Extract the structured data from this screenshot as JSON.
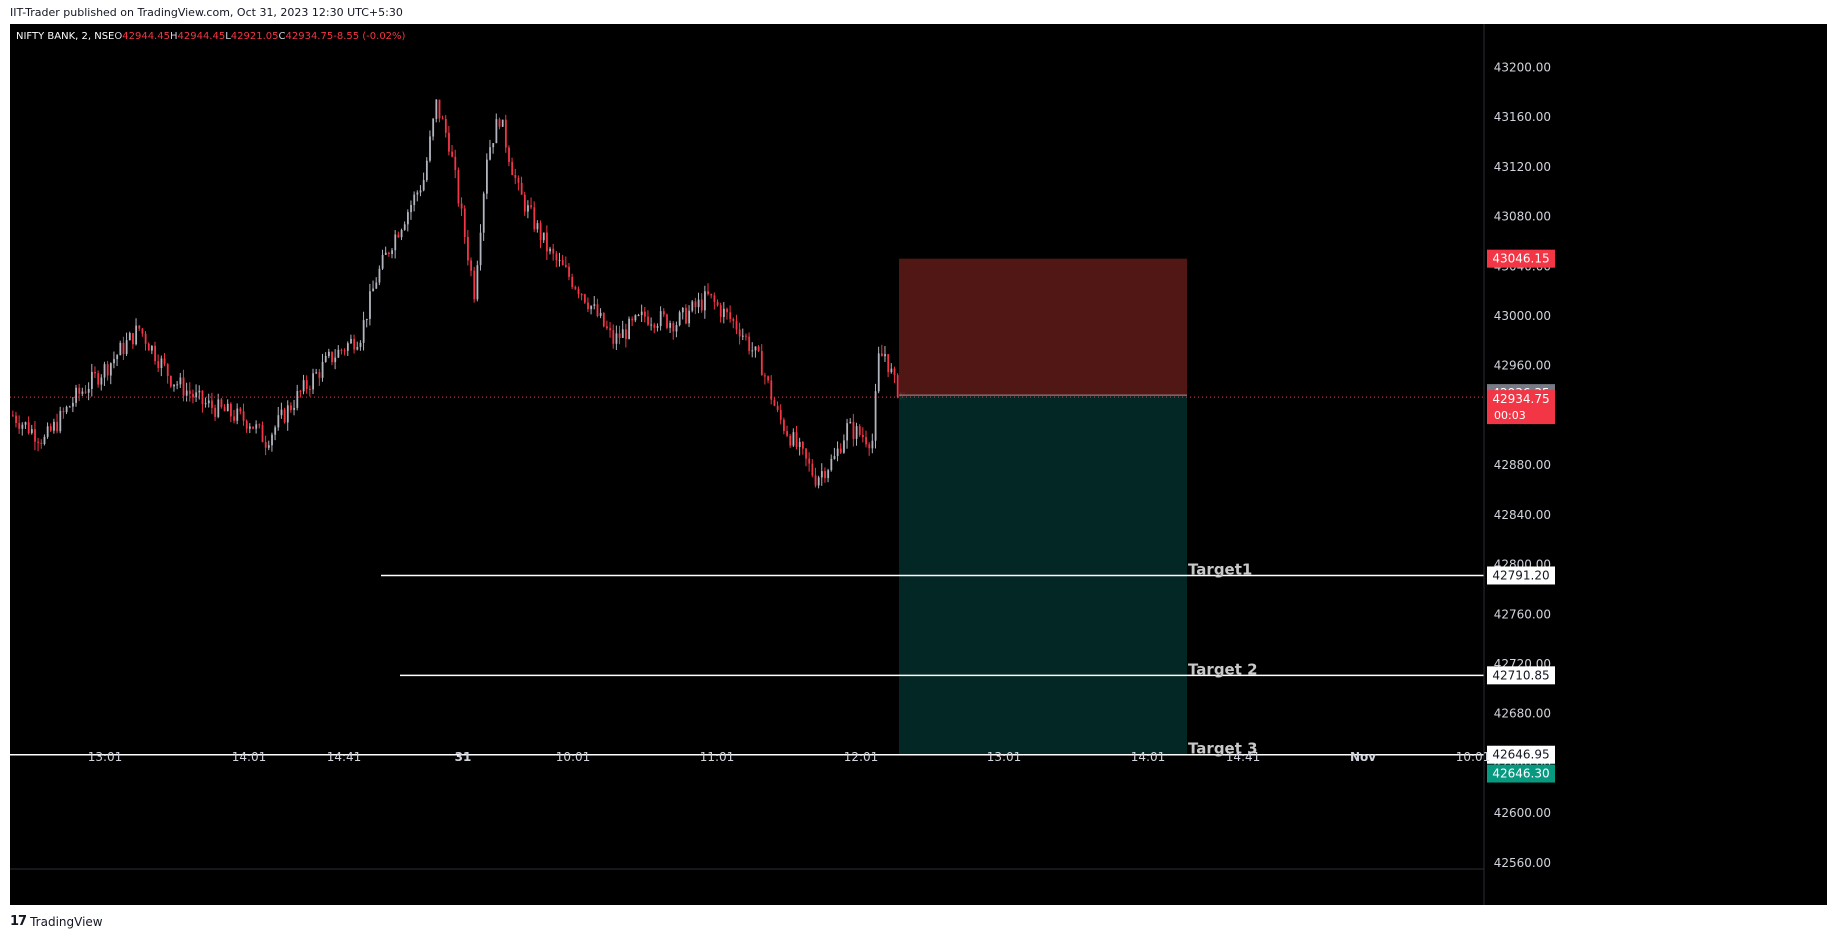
{
  "header": {
    "text": "IIT-Trader published on TradingView.com, Oct 31, 2023 12:30 UTC+5:30"
  },
  "footer": {
    "brand": "TradingView",
    "logo_icon": "tradingview-logo-icon"
  },
  "legend": {
    "symbol": "NIFTY BANK, 2, NSE",
    "o_label": "O",
    "o": "42944.45",
    "h_label": "H",
    "h": "42944.45",
    "l_label": "L",
    "l": "42921.05",
    "c_label": "C",
    "c": "42934.75",
    "change": "-8.55 (-0.02%)"
  },
  "colors": {
    "up": "#b2b5be",
    "down": "#f23645",
    "stop_zone": "#5a1a17",
    "target_zone": "#022b28",
    "badge_red": "#f23645",
    "badge_green": "#089981",
    "badge_gray": "#787b86"
  },
  "chart_data": {
    "type": "candlestick",
    "y_ticks": [
      43200,
      43160,
      43120,
      43080,
      43040,
      43000,
      42960,
      42920,
      42880,
      42840,
      42800,
      42760,
      42720,
      42680,
      42640,
      42600,
      42560
    ],
    "y_tick_labels": [
      "43200.00",
      "43160.00",
      "43120.00",
      "43080.00",
      "43040.00",
      "43000.00",
      "42960.00",
      "42920.00",
      "42880.00",
      "42840.00",
      "42800.00",
      "42760.00",
      "42720.00",
      "42680.00",
      "42640.00",
      "42600.00",
      "42560.00"
    ],
    "x_labels": [
      "13:01",
      "14:01",
      "14:41",
      "31",
      "10:01",
      "11:01",
      "12:01",
      "13:01",
      "14:01",
      "14:41",
      "Nov",
      "10:01"
    ],
    "ylim": [
      42555,
      43235
    ],
    "price_line": 42934.75,
    "position": {
      "type": "short",
      "entry": 42936.35,
      "stop": 43046.15,
      "target": 42646.3
    },
    "target_lines": [
      {
        "label": "Target1",
        "price": 42791.2,
        "price_label": "42791.20"
      },
      {
        "label": "Target 2",
        "price": 42710.85,
        "price_label": "42710.85"
      },
      {
        "label": "Target 3",
        "price": 42646.95,
        "price_label": "42646.95"
      }
    ],
    "badges": {
      "stop": "43046.15",
      "entry": "42936.35",
      "last": "42934.75",
      "countdown": "00:03",
      "target": "42646.30"
    },
    "anchors": [
      [
        0,
        42920
      ],
      [
        10,
        42900
      ],
      [
        20,
        42935
      ],
      [
        30,
        42960
      ],
      [
        40,
        42990
      ],
      [
        50,
        42950
      ],
      [
        60,
        42930
      ],
      [
        70,
        42920
      ],
      [
        75,
        42915
      ],
      [
        80,
        42900
      ],
      [
        90,
        42935
      ],
      [
        100,
        42965
      ],
      [
        110,
        42985
      ],
      [
        115,
        43030
      ],
      [
        120,
        43060
      ],
      [
        130,
        43110
      ],
      [
        134,
        43170
      ],
      [
        138,
        43140
      ],
      [
        142,
        43080
      ],
      [
        146,
        43020
      ],
      [
        150,
        43130
      ],
      [
        154,
        43160
      ],
      [
        160,
        43100
      ],
      [
        170,
        43050
      ],
      [
        180,
        43020
      ],
      [
        190,
        42980
      ],
      [
        200,
        43000
      ],
      [
        210,
        42995
      ],
      [
        220,
        43015
      ],
      [
        230,
        42990
      ],
      [
        237,
        42960
      ],
      [
        242,
        42920
      ],
      [
        248,
        42895
      ],
      [
        254,
        42870
      ],
      [
        260,
        42885
      ],
      [
        264,
        42910
      ],
      [
        268,
        42905
      ],
      [
        272,
        42900
      ],
      [
        274,
        42965
      ],
      [
        276,
        42970
      ],
      [
        279,
        42945
      ],
      [
        282,
        42935
      ]
    ]
  }
}
